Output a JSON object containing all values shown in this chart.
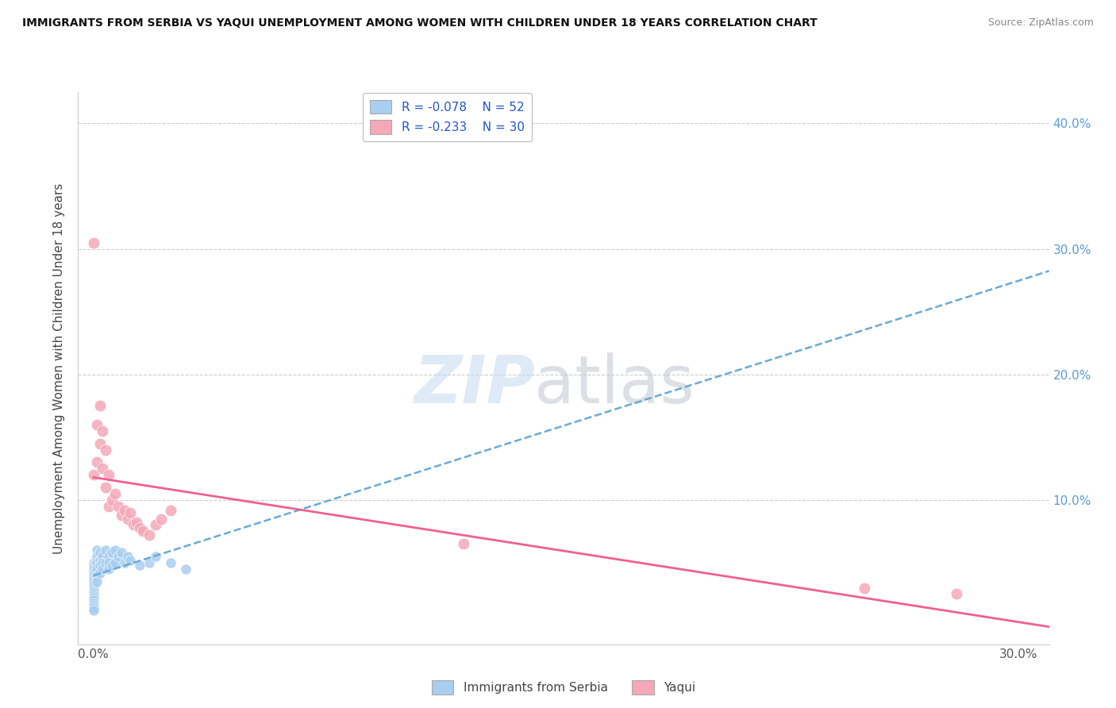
{
  "title": "IMMIGRANTS FROM SERBIA VS YAQUI UNEMPLOYMENT AMONG WOMEN WITH CHILDREN UNDER 18 YEARS CORRELATION CHART",
  "source": "Source: ZipAtlas.com",
  "ylabel": "Unemployment Among Women with Children Under 18 years",
  "legend1_R": "-0.078",
  "legend1_N": "52",
  "legend2_R": "-0.233",
  "legend2_N": "30",
  "color_serbia": "#a8cef0",
  "color_yaqui": "#f4a8b8",
  "color_line_serbia": "#6aaad4",
  "color_line_yaqui": "#f06090",
  "serbia_x": [
    0.0,
    0.0,
    0.0,
    0.0,
    0.0,
    0.0,
    0.0,
    0.0,
    0.0,
    0.0,
    0.0,
    0.0,
    0.0,
    0.0,
    0.0,
    0.0,
    0.0,
    0.0,
    0.0,
    0.0,
    0.001,
    0.001,
    0.001,
    0.001,
    0.001,
    0.001,
    0.002,
    0.002,
    0.002,
    0.002,
    0.003,
    0.003,
    0.003,
    0.004,
    0.004,
    0.005,
    0.005,
    0.005,
    0.006,
    0.006,
    0.007,
    0.007,
    0.008,
    0.009,
    0.01,
    0.011,
    0.012,
    0.015,
    0.018,
    0.02,
    0.025,
    0.03
  ],
  "serbia_y": [
    0.05,
    0.048,
    0.046,
    0.044,
    0.042,
    0.04,
    0.038,
    0.036,
    0.034,
    0.032,
    0.03,
    0.028,
    0.026,
    0.024,
    0.022,
    0.02,
    0.018,
    0.016,
    0.014,
    0.012,
    0.06,
    0.055,
    0.05,
    0.045,
    0.04,
    0.035,
    0.058,
    0.052,
    0.048,
    0.042,
    0.055,
    0.05,
    0.045,
    0.06,
    0.05,
    0.055,
    0.05,
    0.045,
    0.058,
    0.048,
    0.06,
    0.05,
    0.055,
    0.058,
    0.05,
    0.055,
    0.052,
    0.048,
    0.05,
    0.055,
    0.05,
    0.045
  ],
  "yaqui_x": [
    0.0,
    0.0,
    0.001,
    0.001,
    0.002,
    0.002,
    0.003,
    0.003,
    0.004,
    0.004,
    0.005,
    0.005,
    0.006,
    0.007,
    0.008,
    0.009,
    0.01,
    0.011,
    0.012,
    0.013,
    0.014,
    0.015,
    0.016,
    0.018,
    0.02,
    0.022,
    0.025,
    0.12,
    0.25,
    0.28
  ],
  "yaqui_y": [
    0.305,
    0.12,
    0.16,
    0.13,
    0.175,
    0.145,
    0.155,
    0.125,
    0.14,
    0.11,
    0.12,
    0.095,
    0.1,
    0.105,
    0.095,
    0.088,
    0.092,
    0.085,
    0.09,
    0.08,
    0.082,
    0.078,
    0.075,
    0.072,
    0.08,
    0.085,
    0.092,
    0.065,
    0.03,
    0.025
  ],
  "xlim_min": -0.005,
  "xlim_max": 0.31,
  "ylim_min": -0.015,
  "ylim_max": 0.425,
  "ytick_right_vals": [
    0.1,
    0.2,
    0.3,
    0.4
  ],
  "ytick_right_labels": [
    "10.0%",
    "20.0%",
    "30.0%",
    "40.0%"
  ],
  "xtick_vals": [
    0.0,
    0.3
  ],
  "xtick_labels": [
    "0.0%",
    "30.0%"
  ]
}
